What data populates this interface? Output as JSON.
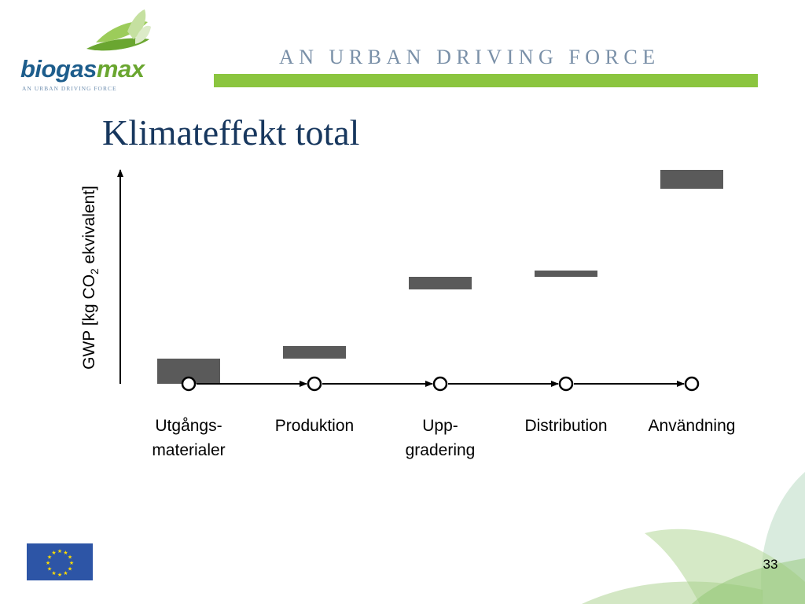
{
  "brand": {
    "logo_word_1": "biogas",
    "logo_word_2": "max",
    "logo_tagline": "AN URBAN DRIVING FORCE",
    "header_tagline": "AN URBAN DRIVING FORCE",
    "colors": {
      "navy": "#17375e",
      "blue": "#1d5d8c",
      "green": "#8bc53f"
    }
  },
  "slide": {
    "title": "Klimateffekt total",
    "page_number": "33"
  },
  "chart_data": {
    "type": "bar",
    "title": "Klimateffekt total",
    "ylabel_prefix": "GWP [kg CO",
    "ylabel_sub": "2",
    "ylabel_suffix": " ekvivalent]",
    "categories": [
      {
        "line1": "Utgångs-",
        "line2": "materialer"
      },
      {
        "line1": "Produktion",
        "line2": ""
      },
      {
        "line1": "Upp-",
        "line2": "gradering"
      },
      {
        "line1": "Distribution",
        "line2": ""
      },
      {
        "line1": "Användning",
        "line2": ""
      }
    ],
    "segments": [
      {
        "start": 0,
        "end": 32
      },
      {
        "start": 32,
        "end": 48
      },
      {
        "start": 120,
        "end": 136
      },
      {
        "start": 136,
        "end": 144
      },
      {
        "start": 248,
        "end": 272
      }
    ],
    "ylim": [
      0,
      272
    ],
    "grid": false,
    "bar_color": "#5a5a5a",
    "flow_markers": "circles connected by arrows"
  }
}
